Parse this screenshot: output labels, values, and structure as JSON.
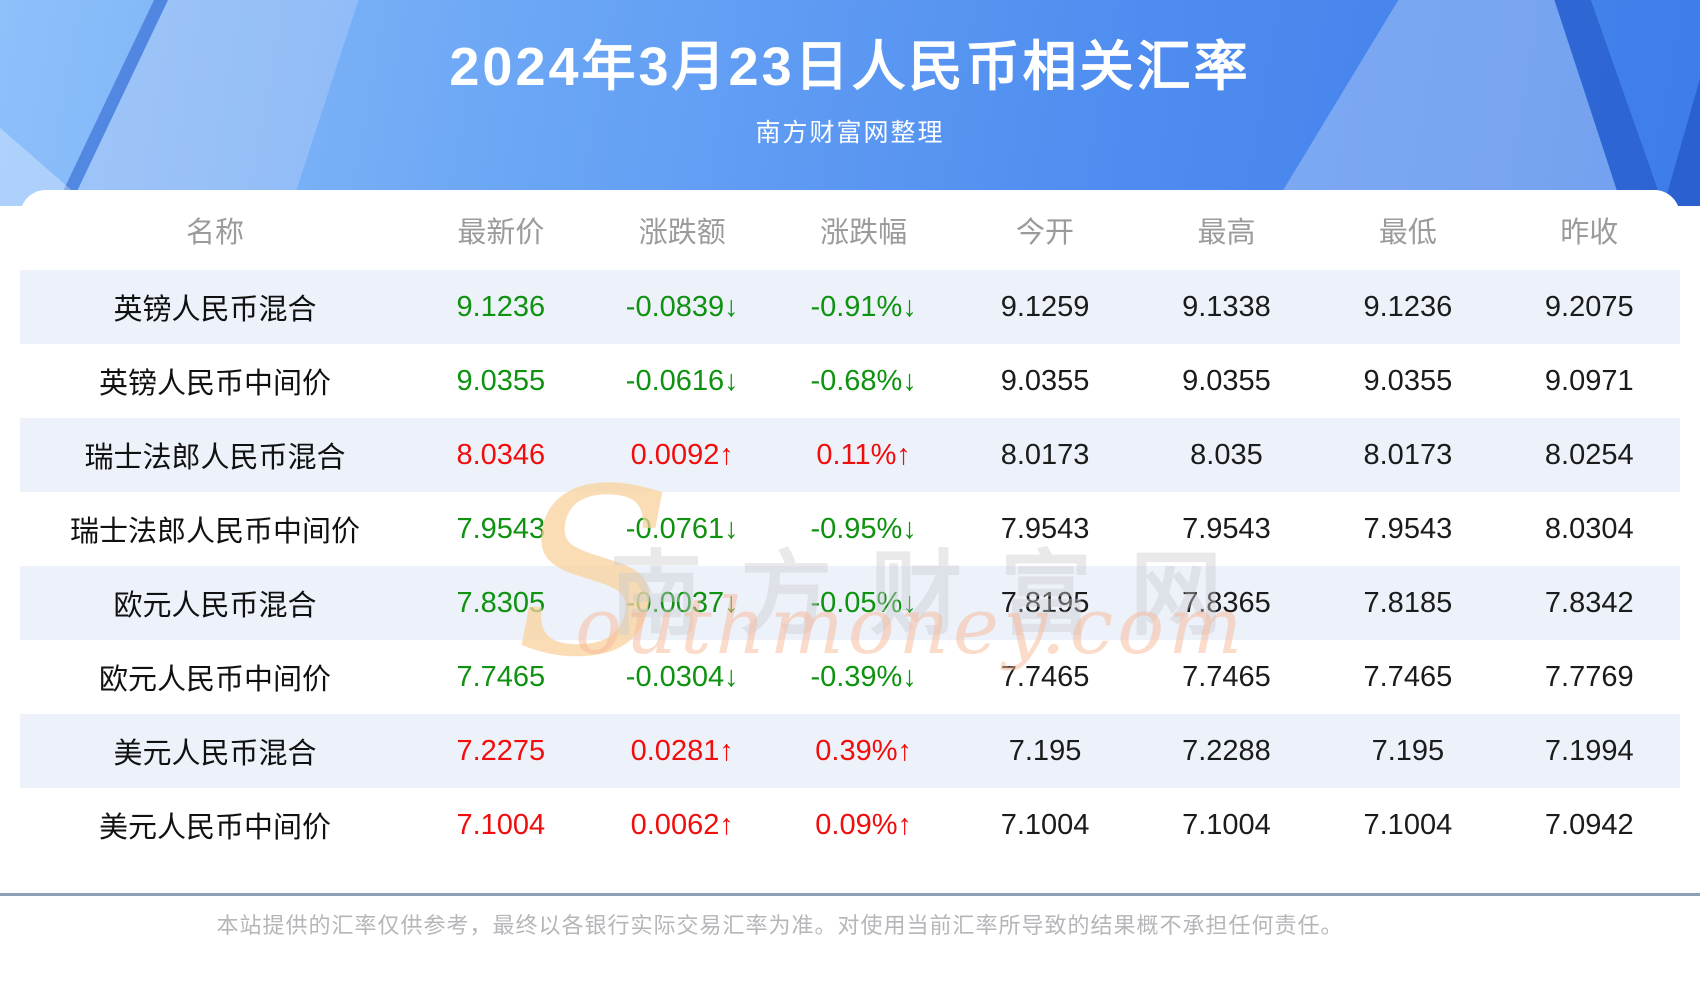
{
  "header": {
    "subtitle": "南方财富网整理"
  },
  "chart_data": {
    "type": "table",
    "title": "2024年3月23日人民币相关汇率",
    "columns": [
      "名称",
      "最新价",
      "涨跌额",
      "涨跌幅",
      "今开",
      "最高",
      "最低",
      "昨收"
    ],
    "rows": [
      {
        "name": "英镑人民币混合",
        "latest": "9.1236",
        "change": "-0.0839↓",
        "change_pct": "-0.91%↓",
        "open": "9.1259",
        "high": "9.1338",
        "low": "9.1236",
        "prev_close": "9.2075",
        "trend": "down"
      },
      {
        "name": "英镑人民币中间价",
        "latest": "9.0355",
        "change": "-0.0616↓",
        "change_pct": "-0.68%↓",
        "open": "9.0355",
        "high": "9.0355",
        "low": "9.0355",
        "prev_close": "9.0971",
        "trend": "down"
      },
      {
        "name": "瑞士法郎人民币混合",
        "latest": "8.0346",
        "change": "0.0092↑",
        "change_pct": "0.11%↑",
        "open": "8.0173",
        "high": "8.035",
        "low": "8.0173",
        "prev_close": "8.0254",
        "trend": "up"
      },
      {
        "name": "瑞士法郎人民币中间价",
        "latest": "7.9543",
        "change": "-0.0761↓",
        "change_pct": "-0.95%↓",
        "open": "7.9543",
        "high": "7.9543",
        "low": "7.9543",
        "prev_close": "8.0304",
        "trend": "down"
      },
      {
        "name": "欧元人民币混合",
        "latest": "7.8305",
        "change": "-0.0037↓",
        "change_pct": "-0.05%↓",
        "open": "7.8195",
        "high": "7.8365",
        "low": "7.8185",
        "prev_close": "7.8342",
        "trend": "down"
      },
      {
        "name": "欧元人民币中间价",
        "latest": "7.7465",
        "change": "-0.0304↓",
        "change_pct": "-0.39%↓",
        "open": "7.7465",
        "high": "7.7465",
        "low": "7.7465",
        "prev_close": "7.7769",
        "trend": "down"
      },
      {
        "name": "美元人民币混合",
        "latest": "7.2275",
        "change": "0.0281↑",
        "change_pct": "0.39%↑",
        "open": "7.195",
        "high": "7.2288",
        "low": "7.195",
        "prev_close": "7.1994",
        "trend": "up"
      },
      {
        "name": "美元人民币中间价",
        "latest": "7.1004",
        "change": "0.0062↑",
        "change_pct": "0.09%↑",
        "open": "7.1004",
        "high": "7.1004",
        "low": "7.1004",
        "prev_close": "7.0942",
        "trend": "up"
      }
    ]
  },
  "watermark": {
    "initial": "S",
    "cn": "南方财富网",
    "en": "outhmoney.com"
  },
  "footer": {
    "disclaimer": "本站提供的汇率仅供参考，最终以各银行实际交易汇率为准。对使用当前汇率所导致的结果概不承担任何责任。"
  },
  "colors": {
    "up": "#f20d0d",
    "down": "#0e9210",
    "banner_blue": "#4f8df0",
    "stripe": "#edf2fa",
    "divider": "#8c9fb6"
  }
}
